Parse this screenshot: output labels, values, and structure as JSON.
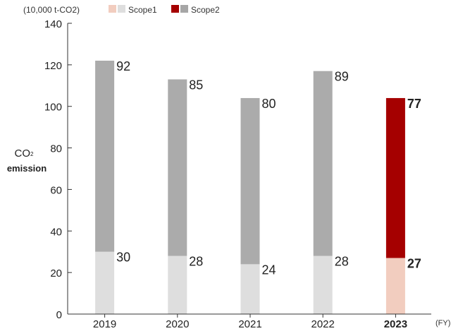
{
  "unit_label": "(10,000 t-CO2)",
  "x_unit": "(FY)",
  "ylabel": {
    "main": "CO",
    "sub": "2",
    "line2": "emission"
  },
  "legend": [
    {
      "label": "Scope1",
      "colors": [
        "#f2cdbf",
        "#dedede"
      ]
    },
    {
      "label": "Scope2",
      "colors": [
        "#a50000",
        "#a6a6a6"
      ]
    }
  ],
  "colors": {
    "scope1_past": "#dedede",
    "scope2_past": "#ababab",
    "scope1_current": "#f2cdbf",
    "scope2_current": "#a50000",
    "axis": "#333333"
  },
  "chart_data": {
    "type": "bar",
    "stacked": true,
    "categories": [
      "2019",
      "2020",
      "2021",
      "2022",
      "2023"
    ],
    "highlight_category": "2023",
    "series": [
      {
        "name": "Scope1",
        "values": [
          30,
          28,
          24,
          28,
          27
        ]
      },
      {
        "name": "Scope2",
        "values": [
          92,
          85,
          80,
          89,
          77
        ]
      }
    ],
    "ylim": [
      0,
      140
    ],
    "yticks": [
      0,
      20,
      40,
      60,
      80,
      100,
      120,
      140
    ],
    "grid": false
  }
}
